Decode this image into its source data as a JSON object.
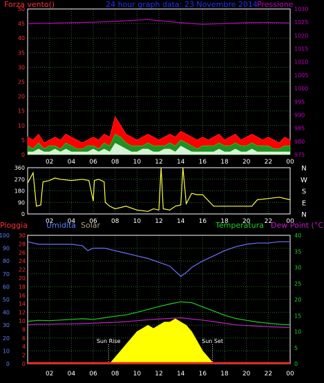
{
  "colors": {
    "background": "#000000",
    "grid": "#2f6a2f",
    "frame": "#ffffff",
    "wind": "#ff2020",
    "gust": "#ff0000",
    "speed": "#d8f0d8",
    "pressure": "#c000c0",
    "title": "#2030ff",
    "direction": "#ffff40",
    "humidity": "#7070ff",
    "humidity_text": "#6080ff",
    "temperature": "#20d020",
    "dewpoint": "#c020c0",
    "solar": "#ffff00",
    "rain": "#ff2020",
    "axis_left_top": "#ff3030",
    "axis_right_top": "#c000c0",
    "axis_left_bottom": "#6080ff",
    "axis_rain": "#ff3030",
    "axis_right_bottom": "#20d020",
    "white_text": "#ffffff"
  },
  "header": {
    "left": "Forza vento()",
    "center": "24 hour graph data: 23 Novembre 2014",
    "right": "Pressione"
  },
  "bottom_header": {
    "rain": "Pioggia",
    "humidity": "Umidita",
    "solar": "Solar",
    "temperature": "Temperatura",
    "dewpoint": "Dew Point (°C)"
  },
  "direction_labels": [
    "N",
    "W",
    "S",
    "E",
    "N"
  ],
  "annotations": {
    "sunrise": "Sun Rise",
    "sunset": "Sun Set"
  },
  "hour_ticks": [
    "02",
    "04",
    "06",
    "08",
    "10",
    "12",
    "14",
    "16",
    "18",
    "20",
    "22",
    "00"
  ],
  "chart_data": [
    {
      "type": "area",
      "name": "wind",
      "x_hours": [
        0,
        0.5,
        1,
        1.5,
        2,
        2.5,
        3,
        3.5,
        4,
        4.5,
        5,
        5.5,
        6,
        6.5,
        7,
        7.5,
        8,
        8.5,
        9,
        9.5,
        10,
        10.5,
        11,
        11.5,
        12,
        12.5,
        13,
        13.5,
        14,
        14.5,
        15,
        15.5,
        16,
        16.5,
        17,
        17.5,
        18,
        18.5,
        19,
        19.5,
        20,
        20.5,
        21,
        21.5,
        22,
        22.5,
        23,
        23.5,
        24
      ],
      "gust": [
        6,
        5,
        7,
        4,
        5,
        6,
        5,
        7,
        6,
        5,
        4,
        5,
        6,
        5,
        7,
        6,
        13,
        10,
        7,
        6,
        5,
        6,
        7,
        6,
        5,
        6,
        7,
        6,
        8,
        7,
        6,
        5,
        6,
        5,
        6,
        7,
        5,
        6,
        7,
        5,
        6,
        7,
        6,
        5,
        6,
        5,
        4,
        6,
        5
      ],
      "wind": [
        3,
        2,
        4,
        2,
        3,
        3,
        2,
        4,
        3,
        2,
        2,
        3,
        3,
        2,
        4,
        3,
        7,
        6,
        4,
        3,
        3,
        3,
        4,
        3,
        3,
        3,
        4,
        3,
        5,
        4,
        3,
        2,
        3,
        3,
        3,
        4,
        3,
        3,
        4,
        3,
        3,
        4,
        3,
        3,
        3,
        2,
        2,
        3,
        3
      ],
      "speed": [
        1,
        1,
        2,
        1,
        1,
        2,
        1,
        2,
        1,
        1,
        1,
        1,
        2,
        1,
        2,
        1,
        4,
        3,
        2,
        1,
        1,
        2,
        2,
        1,
        1,
        2,
        2,
        1,
        3,
        2,
        1,
        1,
        1,
        1,
        1,
        2,
        1,
        1,
        2,
        1,
        1,
        2,
        1,
        1,
        1,
        1,
        1,
        1,
        1
      ],
      "left_axis": {
        "min": 0,
        "max": 50,
        "ticks": [
          0,
          5,
          10,
          15,
          20,
          25,
          30,
          35,
          40,
          45,
          50
        ]
      }
    },
    {
      "type": "line",
      "name": "Pressione",
      "x_hours": [
        0,
        2,
        4,
        6,
        8,
        10,
        11,
        12,
        14,
        16,
        18,
        20,
        22,
        24
      ],
      "values": [
        1024.5,
        1024.6,
        1024.8,
        1025.0,
        1025.3,
        1025.8,
        1026.0,
        1025.6,
        1024.8,
        1024.2,
        1024.5,
        1024.8,
        1024.9,
        1024.7
      ],
      "right_axis": {
        "min": 975,
        "max": 1030,
        "ticks": [
          975,
          980,
          985,
          990,
          995,
          1000,
          1005,
          1010,
          1015,
          1020,
          1025,
          1030
        ]
      }
    },
    {
      "type": "line",
      "name": "direction",
      "x_hours": [
        0,
        0.5,
        0.8,
        1.2,
        1.4,
        2,
        2.5,
        3,
        4,
        5,
        5.6,
        6,
        6.1,
        6.5,
        7,
        7.1,
        7.5,
        8,
        9,
        10,
        11,
        11.5,
        12,
        12.2,
        12.4,
        13,
        13.5,
        14,
        14.2,
        14.5,
        15,
        15.5,
        16,
        17,
        18,
        19,
        20,
        20.5,
        21,
        22,
        23,
        24
      ],
      "values": [
        240,
        320,
        60,
        70,
        250,
        260,
        280,
        270,
        260,
        270,
        260,
        100,
        260,
        270,
        250,
        90,
        60,
        40,
        60,
        30,
        20,
        40,
        30,
        360,
        40,
        30,
        60,
        70,
        360,
        80,
        160,
        150,
        150,
        60,
        60,
        60,
        60,
        60,
        110,
        120,
        130,
        110
      ],
      "axis": {
        "min": 0,
        "max": 360,
        "ticks": [
          0,
          90,
          180,
          270,
          360
        ]
      }
    },
    {
      "type": "line",
      "name": "Umidita",
      "x_hours": [
        0,
        1,
        2,
        3,
        4,
        5,
        5.5,
        6,
        7,
        8,
        9,
        10,
        11,
        12,
        13,
        13.5,
        14,
        14.5,
        15,
        16,
        17,
        18,
        19,
        20,
        21,
        22,
        23,
        24
      ],
      "values": [
        95,
        93,
        93,
        93,
        93,
        92,
        88,
        90,
        90,
        88,
        86,
        84,
        82,
        79,
        76,
        72,
        68,
        71,
        75,
        80,
        84,
        88,
        91,
        93,
        94,
        94,
        95,
        95
      ],
      "axis": {
        "min": 0,
        "max": 100,
        "ticks": [
          0,
          10,
          20,
          30,
          40,
          50,
          60,
          70,
          80,
          90,
          100
        ]
      }
    },
    {
      "type": "line",
      "name": "Temperatura",
      "x_hours": [
        0,
        1,
        2,
        3,
        4,
        5,
        6,
        7,
        8,
        9,
        10,
        11,
        12,
        13,
        14,
        15,
        16,
        17,
        18,
        19,
        20,
        21,
        22,
        23,
        24
      ],
      "values": [
        13.2,
        13.5,
        13.4,
        13.6,
        13.8,
        14.0,
        13.8,
        14.3,
        14.8,
        15.2,
        16.0,
        16.9,
        17.8,
        18.6,
        19.3,
        19.0,
        17.7,
        16.4,
        15.1,
        14.1,
        13.5,
        13.0,
        12.6,
        12.3,
        12.1
      ],
      "axis": {
        "min": 0,
        "max": 40,
        "ticks": [
          0,
          5,
          10,
          15,
          20,
          25,
          30,
          35,
          40
        ]
      }
    },
    {
      "type": "line",
      "name": "Dew Point (°C)",
      "x_hours": [
        0,
        1,
        2,
        3,
        4,
        5,
        6,
        7,
        8,
        9,
        10,
        11,
        12,
        13,
        14,
        15,
        16,
        17,
        18,
        19,
        20,
        21,
        22,
        23,
        24
      ],
      "values": [
        12.1,
        12.3,
        12.3,
        12.4,
        12.4,
        12.5,
        12.6,
        12.8,
        12.9,
        13.1,
        13.4,
        13.7,
        13.9,
        14.1,
        14.3,
        13.9,
        13.6,
        13.1,
        12.6,
        12.1,
        11.9,
        11.7,
        11.5,
        11.4,
        11.3
      ]
    },
    {
      "type": "area",
      "name": "Solar",
      "x_hours": [
        7.5,
        8,
        8.5,
        9,
        9.5,
        10,
        10.5,
        11,
        11.5,
        12,
        12.5,
        13,
        13.5,
        14,
        14.5,
        15,
        15.5,
        16,
        16.5,
        17
      ],
      "values": [
        0,
        2,
        4,
        6,
        8,
        10,
        11,
        12,
        11,
        12,
        13,
        13,
        14,
        13,
        12,
        10,
        7,
        4,
        2,
        0
      ]
    },
    {
      "type": "line",
      "name": "Pioggia",
      "x_hours": [
        0,
        24
      ],
      "values": [
        0,
        0
      ],
      "axis": {
        "min": 0,
        "max": 30,
        "ticks": [
          0,
          2,
          4,
          6,
          8,
          10,
          12,
          14,
          16,
          18,
          20,
          22,
          24,
          26,
          28,
          30
        ]
      }
    }
  ]
}
